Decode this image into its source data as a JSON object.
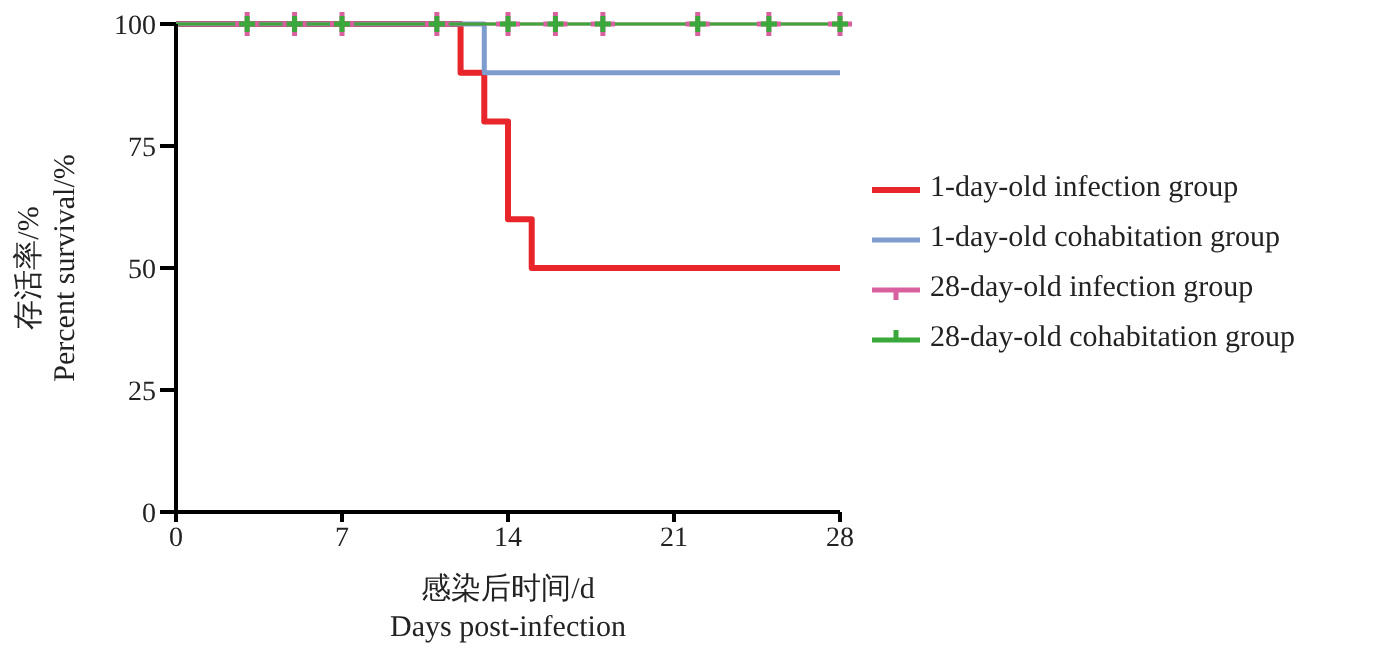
{
  "chart_data": {
    "type": "step",
    "xlabel": "感染后时间/d\nDays post-infection",
    "ylabel": "存活率/%\nPercent survival/%",
    "xlim": [
      0,
      28
    ],
    "xticks": [
      0,
      7,
      14,
      21,
      28
    ],
    "ylim": [
      0,
      100
    ],
    "yticks": [
      0,
      25,
      50,
      75,
      100
    ],
    "grid": false,
    "legend": "right",
    "series": [
      {
        "name": "1-day-old infection group",
        "color": "#e8252a",
        "x": [
          0,
          12,
          13,
          14,
          15,
          28
        ],
        "values": [
          100,
          90,
          80,
          60,
          50,
          50
        ],
        "marker": "none"
      },
      {
        "name": "1-day-old cohabitation group",
        "color": "#7f9ccf",
        "x": [
          0,
          13,
          28
        ],
        "values": [
          100,
          90,
          90
        ],
        "marker": "none"
      },
      {
        "name": "28-day-old infection group",
        "color": "#d9609f",
        "x": [
          0,
          3,
          5,
          7,
          11,
          14,
          16,
          18,
          22,
          25,
          28
        ],
        "values": [
          100,
          100,
          100,
          100,
          100,
          100,
          100,
          100,
          100,
          100,
          100
        ],
        "marker": "cross"
      },
      {
        "name": "28-day-old cohabitation group",
        "color": "#3aa83a",
        "x": [
          0,
          3,
          5,
          7,
          11,
          14,
          16,
          18,
          22,
          25,
          28
        ],
        "values": [
          100,
          100,
          100,
          100,
          100,
          100,
          100,
          100,
          100,
          100,
          100
        ],
        "marker": "cross"
      }
    ]
  }
}
